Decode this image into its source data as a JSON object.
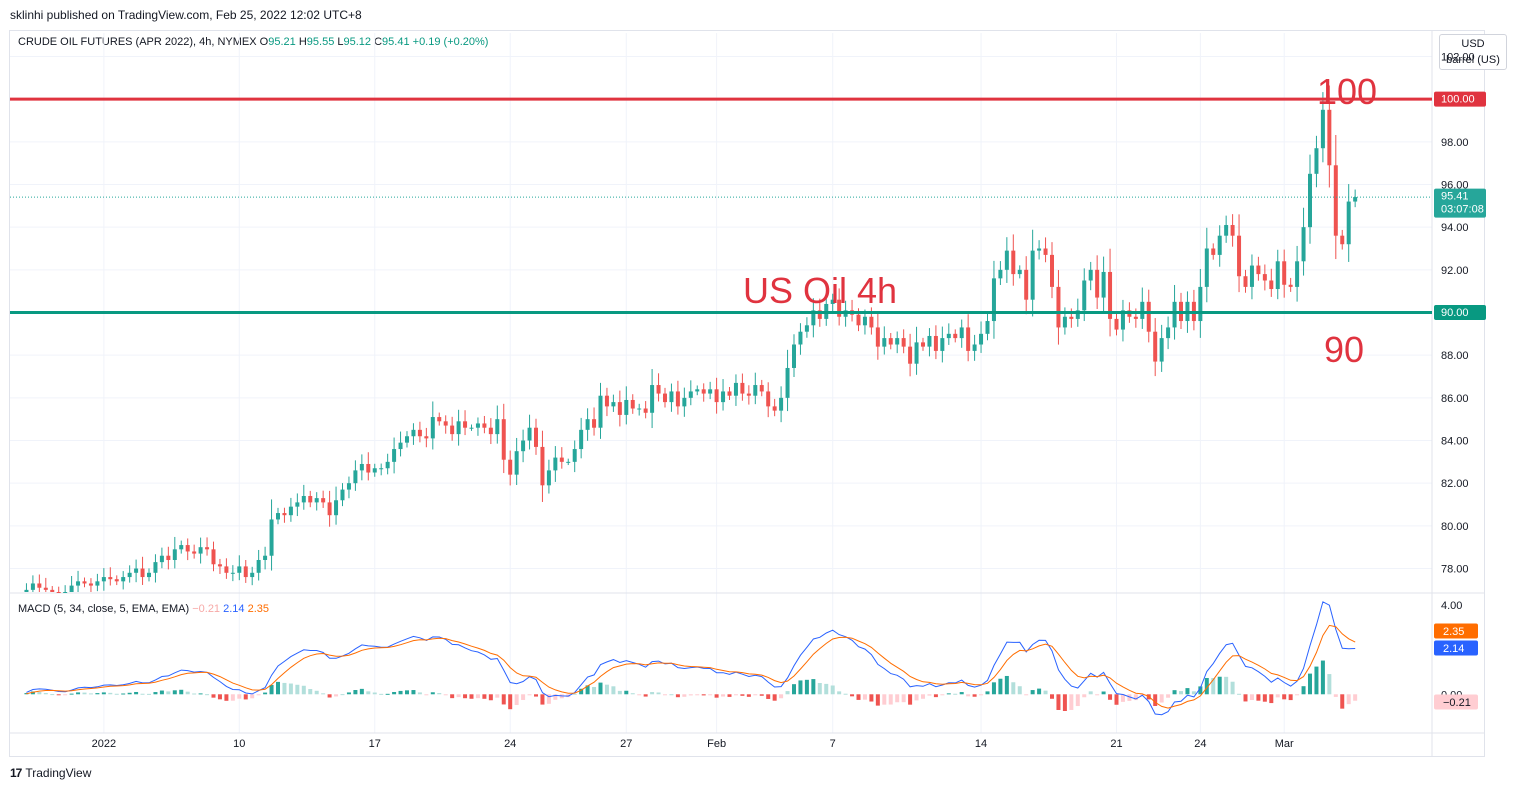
{
  "header": {
    "credit": "sklinhi published on TradingView.com, Feb 25, 2022 12:02 UTC+8"
  },
  "symbol": {
    "name": "CRUDE OIL FUTURES (APR 2022), 4h, NYMEX",
    "o_label": "O",
    "o_value": "95.21",
    "h_label": "H",
    "h_value": "95.55",
    "l_label": "L",
    "l_value": "95.12",
    "c_label": "C",
    "c_value": "95.41",
    "change": "+0.19 (+0.20%)"
  },
  "unit": {
    "currency": "USD",
    "measure": "barrel (US)"
  },
  "annotations": {
    "title": "US Oil 4h",
    "level_high_text": "100",
    "level_low_text": "90"
  },
  "price_badges": {
    "resistance": "100.00",
    "support": "90.00",
    "last_price": "95.41",
    "countdown": "03:07:08"
  },
  "macd": {
    "label": "MACD (5, 34, close, 5, EMA, EMA)",
    "hist_value": "−0.21",
    "macd_value": "2.14",
    "signal_value": "2.35",
    "axis_top": "4.00",
    "axis_zero": "0.00"
  },
  "footer": {
    "brand": "TradingView"
  },
  "colors": {
    "up": "#26a69a",
    "down": "#ef5350",
    "resistance": "#e0333f",
    "support": "#089981",
    "macd": "#2962ff",
    "signal": "#ff6d00",
    "annotation": "#e0333f"
  },
  "chart_data": {
    "type": "candlestick",
    "title": "CRUDE OIL FUTURES (APR 2022), 4h, NYMEX",
    "y_ticks": [
      "78.00",
      "80.00",
      "82.00",
      "84.00",
      "86.00",
      "88.00",
      "90.00",
      "92.00",
      "94.00",
      "96.00",
      "98.00",
      "100.00",
      "102.00"
    ],
    "ylim": [
      76.9,
      103.1
    ],
    "x_ticks": [
      {
        "label": "2022",
        "idx": 13
      },
      {
        "label": "10",
        "idx": 34
      },
      {
        "label": "17",
        "idx": 55
      },
      {
        "label": "24",
        "idx": 76
      },
      {
        "label": "27",
        "idx": 94
      },
      {
        "label": "Feb",
        "idx": 108
      },
      {
        "label": "7",
        "idx": 126
      },
      {
        "label": "14",
        "idx": 149
      },
      {
        "label": "21",
        "idx": 170
      },
      {
        "label": "24",
        "idx": 183
      },
      {
        "label": "Mar",
        "idx": 196
      }
    ],
    "horizontal_levels": [
      100.0,
      90.0
    ],
    "last_price": 95.41,
    "closes": [
      76.7,
      77.0,
      77.3,
      77.1,
      77.0,
      76.9,
      76.8,
      76.9,
      77.2,
      77.4,
      77.3,
      77.2,
      77.4,
      77.6,
      77.5,
      77.4,
      77.6,
      77.8,
      78.0,
      77.6,
      77.8,
      78.3,
      78.6,
      78.4,
      78.9,
      79.1,
      78.8,
      78.7,
      79.0,
      78.9,
      78.2,
      78.1,
      77.8,
      77.8,
      78.1,
      77.6,
      77.8,
      78.4,
      78.6,
      80.3,
      80.6,
      80.5,
      80.9,
      81.1,
      81.4,
      81.1,
      81.3,
      81.1,
      80.5,
      81.2,
      81.7,
      82.0,
      82.6,
      82.9,
      82.5,
      82.7,
      82.7,
      83.0,
      83.6,
      83.9,
      84.2,
      84.5,
      84.2,
      84.1,
      85.1,
      84.9,
      84.7,
      84.3,
      84.9,
      84.6,
      84.6,
      84.8,
      84.6,
      84.3,
      85.0,
      83.1,
      82.4,
      83.5,
      84.0,
      84.6,
      83.7,
      81.9,
      82.6,
      83.2,
      83.0,
      83.0,
      83.6,
      84.5,
      85.0,
      84.6,
      86.1,
      85.6,
      85.8,
      85.2,
      85.9,
      85.5,
      85.5,
      85.3,
      86.6,
      86.2,
      85.8,
      86.3,
      85.6,
      86.0,
      86.3,
      86.4,
      86.2,
      86.4,
      85.8,
      86.3,
      86.1,
      86.7,
      86.2,
      86.1,
      86.6,
      86.3,
      85.6,
      85.4,
      86.0,
      87.4,
      88.5,
      89.1,
      89.4,
      90.1,
      89.7,
      90.4,
      90.6,
      89.8,
      90.1,
      89.9,
      89.4,
      89.8,
      89.3,
      88.4,
      88.8,
      88.5,
      88.8,
      88.4,
      87.6,
      88.6,
      88.4,
      88.9,
      88.2,
      88.8,
      89.0,
      88.8,
      89.3,
      88.2,
      88.5,
      89.0,
      89.6,
      91.6,
      92.0,
      92.9,
      91.8,
      92.0,
      90.6,
      92.9,
      93.0,
      92.7,
      91.2,
      89.3,
      89.8,
      89.7,
      90.1,
      91.5,
      92.0,
      90.7,
      91.9,
      89.7,
      89.2,
      90.1,
      89.8,
      89.7,
      90.5,
      89.1,
      87.7,
      88.8,
      89.3,
      90.5,
      89.6,
      90.5,
      89.6,
      91.2,
      93.0,
      92.7,
      93.6,
      94.1,
      93.6,
      91.7,
      91.2,
      92.2,
      91.8,
      91.5,
      91.1,
      92.4,
      91.3,
      91.2,
      92.4,
      94.0,
      96.5,
      97.7,
      99.5,
      96.9,
      93.6,
      93.2,
      95.2,
      95.41
    ],
    "series": [
      {
        "name": "MACD",
        "values": "computed (fast 5, slow 34)"
      },
      {
        "name": "Signal",
        "values": "computed (EMA 5 of MACD)"
      }
    ]
  }
}
